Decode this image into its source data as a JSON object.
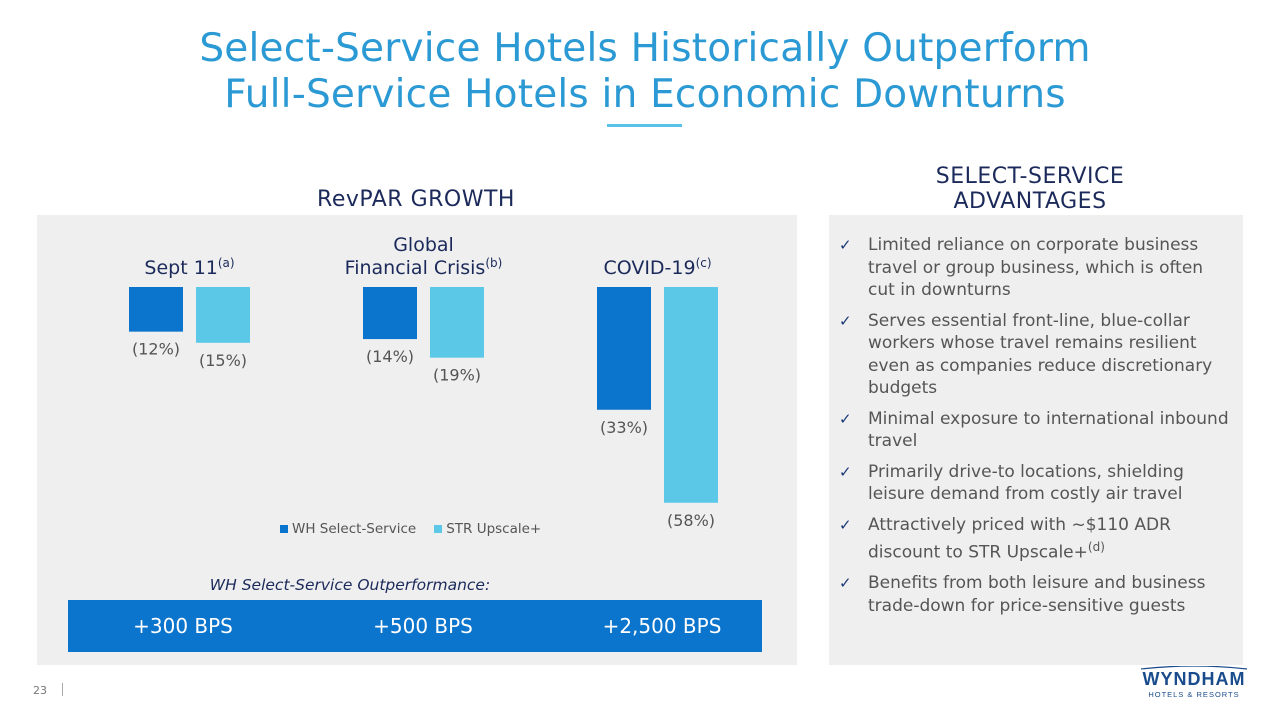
{
  "title": {
    "line1": "Select-Service Hotels Historically Outperform",
    "line2": "Full-Service Hotels in Economic Downturns"
  },
  "chart_data": {
    "type": "bar",
    "title": "RevPAR GROWTH",
    "groups": [
      {
        "label_lines": [
          "Sept 11"
        ],
        "sup": "(a)"
      },
      {
        "label_lines": [
          "Global",
          "Financial Crisis"
        ],
        "sup": "(b)"
      },
      {
        "label_lines": [
          "COVID-19"
        ],
        "sup": "(c)"
      }
    ],
    "series": [
      {
        "name": "WH Select-Service",
        "color": "#0b74cc",
        "values": [
          -12,
          -14,
          -33
        ],
        "labels": [
          "(12%)",
          "(14%)",
          "(33%)"
        ]
      },
      {
        "name": "STR Upscale+",
        "color": "#5bc8e8",
        "values": [
          -15,
          -19,
          -58
        ],
        "labels": [
          "(15%)",
          "(19%)",
          "(58%)"
        ]
      }
    ],
    "legend_position": "bottom",
    "grid": false
  },
  "outperformance": {
    "title": "WH Select-Service Outperformance:",
    "values": [
      "+300 BPS",
      "+500 BPS",
      "+2,500 BPS"
    ]
  },
  "advantages": {
    "heading_line1": "SELECT-SERVICE",
    "heading_line2": "ADVANTAGES",
    "check_glyph": "✓",
    "items": [
      {
        "text": "Limited reliance on corporate business travel or group business, which is often cut in downturns",
        "sup": ""
      },
      {
        "text": "Serves essential front-line, blue-collar workers whose travel remains resilient even as companies reduce discretionary budgets",
        "sup": ""
      },
      {
        "text": "Minimal exposure to international inbound travel",
        "sup": ""
      },
      {
        "text": "Primarily drive-to locations, shielding leisure demand from costly air travel",
        "sup": ""
      },
      {
        "text": "Attractively priced with ~$110 ADR discount to STR Upscale+",
        "sup": "(d)"
      },
      {
        "text": "Benefits from both leisure and business trade-down for price-sensitive guests",
        "sup": ""
      }
    ]
  },
  "footer": {
    "page_number": "23",
    "logo_text": "WYNDHAM",
    "logo_sub": "HOTELS & RESORTS"
  }
}
